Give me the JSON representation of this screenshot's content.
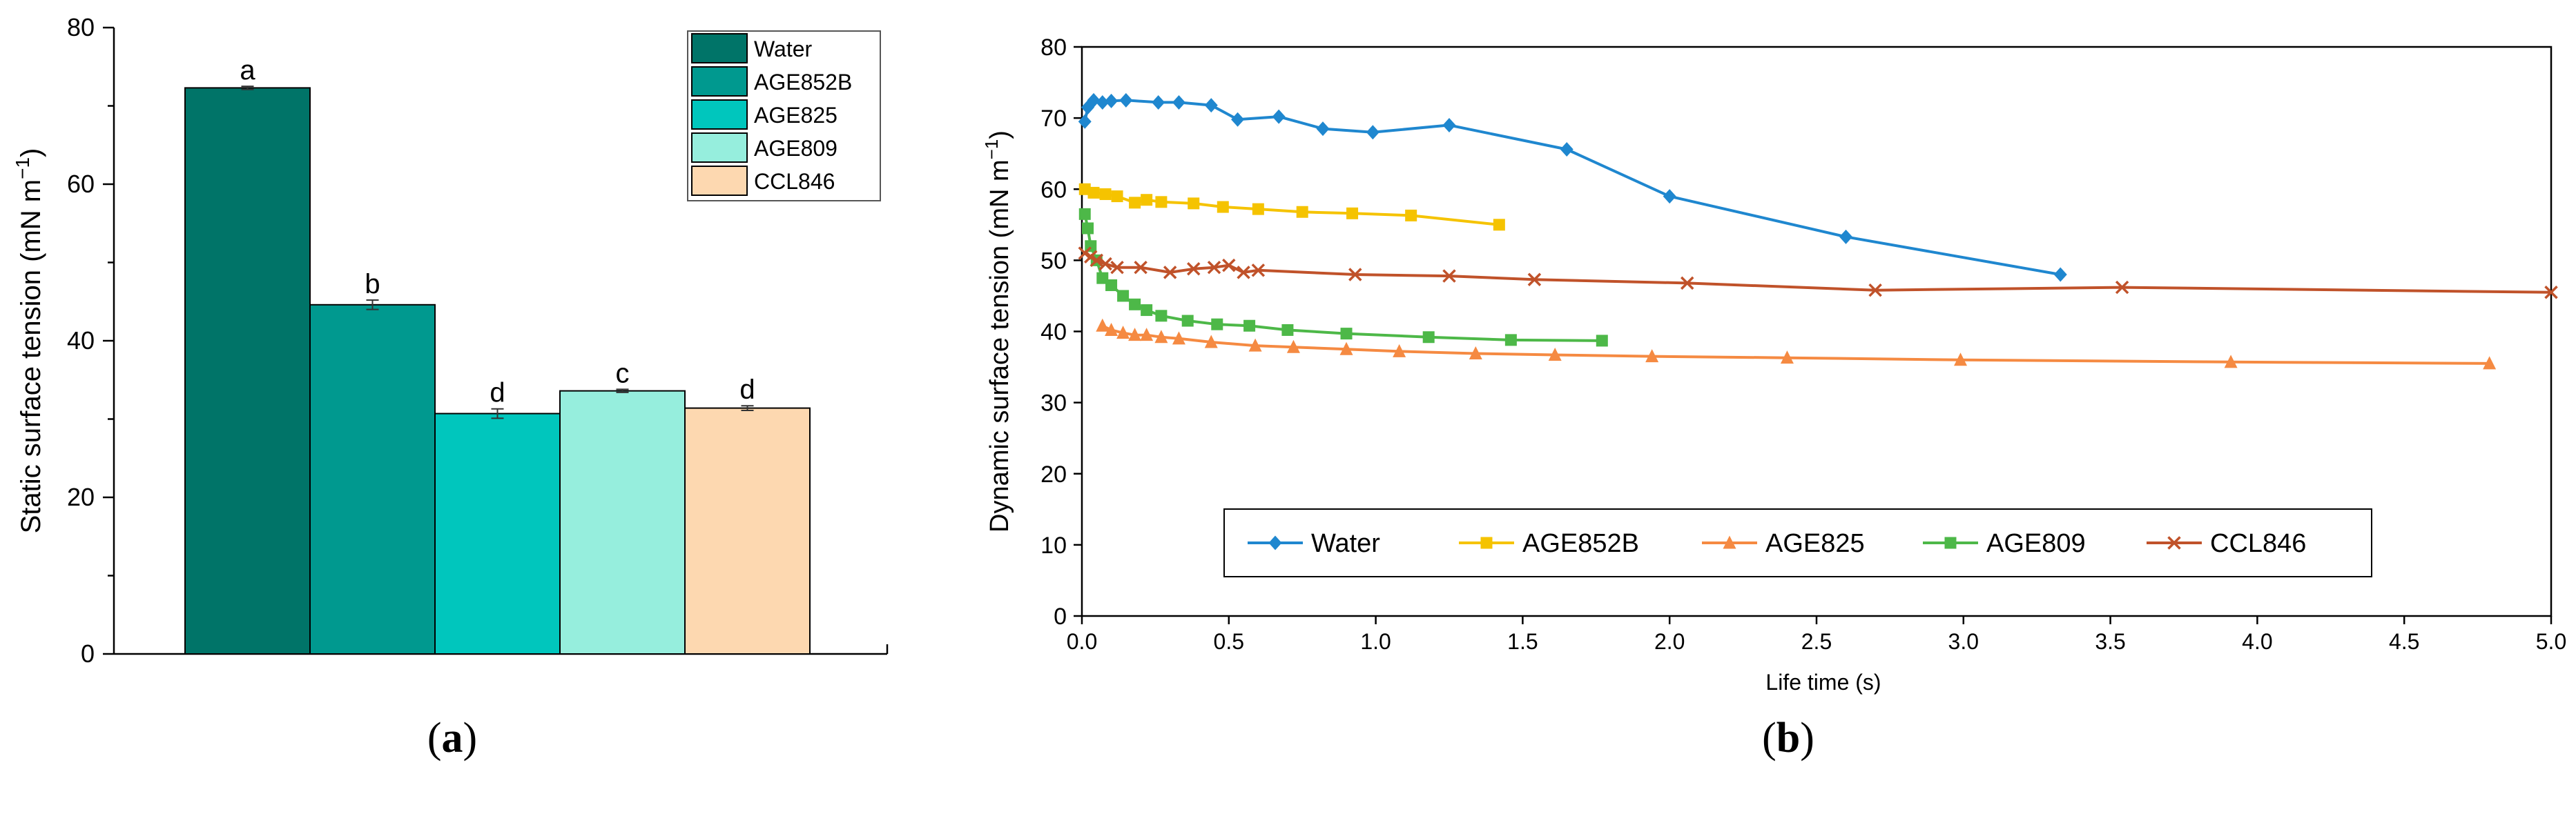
{
  "chart_data": [
    {
      "id": "a",
      "type": "bar",
      "panel_label": "a",
      "ylabel": "Static surface tension (mN m",
      "ylabel_sup": "−1",
      "ylabel_close": ")",
      "ylim": [
        0,
        80
      ],
      "yticks": [
        "0",
        "20",
        "40",
        "60",
        "80"
      ],
      "categories": [
        "Water",
        "AGE852B",
        "AGE825",
        "AGE809",
        "CCL846"
      ],
      "values": [
        72.3,
        44.6,
        30.7,
        33.6,
        31.4
      ],
      "errors": [
        0.2,
        0.6,
        0.6,
        0.2,
        0.3
      ],
      "letters": [
        "a",
        "b",
        "d",
        "c",
        "d"
      ],
      "colors": [
        "#007468",
        "#00998F",
        "#00C6BD",
        "#96EEDD",
        "#FDD8B0"
      ],
      "legend": [
        "Water",
        "AGE852B",
        "AGE825",
        "AGE809",
        "CCL846"
      ],
      "legend_position": "top-right"
    },
    {
      "id": "b",
      "type": "line",
      "panel_label": "b",
      "xlabel": "Life time (s)",
      "ylabel": "Dynamic surface tension (mN m",
      "ylabel_sup": "−1",
      "ylabel_close": ")",
      "xlim": [
        0,
        5
      ],
      "ylim": [
        0,
        80
      ],
      "xticks": [
        "0.0",
        "0.5",
        "1.0",
        "1.5",
        "2.0",
        "2.5",
        "3.0",
        "3.5",
        "4.0",
        "4.5",
        "5.0"
      ],
      "yticks": [
        "0",
        "10",
        "20",
        "30",
        "40",
        "50",
        "60",
        "70",
        "80"
      ],
      "legend_position": "bottom-center",
      "series": [
        {
          "name": "Water",
          "color": "#1F87CF",
          "marker": "diamond",
          "x": [
            0.01,
            0.02,
            0.04,
            0.07,
            0.1,
            0.15,
            0.26,
            0.33,
            0.44,
            0.53,
            0.67,
            0.82,
            0.99,
            1.25,
            1.65,
            2.0,
            2.6,
            3.33
          ],
          "y": [
            69.5,
            71.5,
            72.5,
            72.2,
            72.4,
            72.5,
            72.2,
            72.2,
            71.8,
            69.8,
            70.2,
            68.5,
            68.0,
            69.0,
            65.6,
            59.0,
            53.3,
            48.0
          ]
        },
        {
          "name": "AGE852B",
          "color": "#F5C300",
          "marker": "square",
          "x": [
            0.01,
            0.04,
            0.08,
            0.12,
            0.18,
            0.22,
            0.27,
            0.38,
            0.48,
            0.6,
            0.75,
            0.92,
            1.12,
            1.42
          ],
          "y": [
            60.0,
            59.5,
            59.3,
            59.0,
            58.1,
            58.5,
            58.2,
            58.0,
            57.5,
            57.2,
            56.8,
            56.6,
            56.3,
            55.0
          ]
        },
        {
          "name": "AGE825",
          "color": "#F58A42",
          "marker": "triangle",
          "x": [
            0.07,
            0.1,
            0.14,
            0.18,
            0.22,
            0.27,
            0.33,
            0.44,
            0.59,
            0.72,
            0.9,
            1.08,
            1.34,
            1.61,
            1.94,
            2.4,
            2.99,
            3.91,
            4.79
          ],
          "y": [
            40.8,
            40.2,
            39.8,
            39.5,
            39.5,
            39.2,
            39.0,
            38.5,
            38.0,
            37.8,
            37.5,
            37.2,
            36.9,
            36.7,
            36.5,
            36.3,
            36.0,
            35.7,
            35.5
          ]
        },
        {
          "name": "AGE809",
          "color": "#4DB848",
          "marker": "square",
          "x": [
            0.01,
            0.02,
            0.03,
            0.05,
            0.07,
            0.1,
            0.14,
            0.18,
            0.22,
            0.27,
            0.36,
            0.46,
            0.57,
            0.7,
            0.9,
            1.18,
            1.46,
            1.77
          ],
          "y": [
            56.5,
            54.5,
            52.0,
            50.0,
            47.5,
            46.5,
            45.0,
            43.8,
            43.0,
            42.2,
            41.5,
            41.0,
            40.8,
            40.2,
            39.7,
            39.2,
            38.8,
            38.7
          ]
        },
        {
          "name": "CCL846",
          "color": "#C0522A",
          "marker": "x",
          "x": [
            0.01,
            0.03,
            0.05,
            0.08,
            0.12,
            0.2,
            0.3,
            0.38,
            0.45,
            0.5,
            0.55,
            0.6,
            0.93,
            1.25,
            1.54,
            2.06,
            2.7,
            3.54,
            5.0
          ],
          "y": [
            51.0,
            50.5,
            50.0,
            49.5,
            49.0,
            49.0,
            48.3,
            48.8,
            49.0,
            49.3,
            48.3,
            48.6,
            48.0,
            47.8,
            47.3,
            46.8,
            45.8,
            46.2,
            45.5
          ]
        }
      ]
    }
  ]
}
